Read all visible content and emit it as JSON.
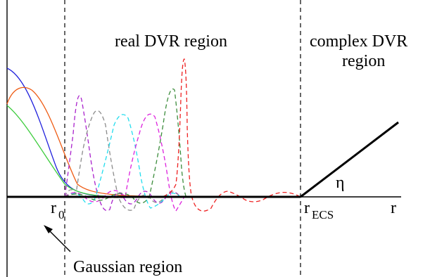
{
  "labels": {
    "real_region": "real DVR region",
    "complex_region_line1": "complex DVR",
    "complex_region_line2": "region",
    "eta": "η",
    "r0_main": "r",
    "r0_sub": "0",
    "recs_main": "r",
    "recs_sub": "ECS",
    "r_axis": "r",
    "gaussian_region": "Gaussian region"
  },
  "colors": {
    "gauss_blue": "#1f1fdc",
    "gauss_orange": "#ee5a12",
    "gauss_green": "#3ccc3c",
    "dvr_purple": "#aa22cc",
    "dvr_gray": "#8c8c8c",
    "dvr_cyan": "#22ddee",
    "dvr_magenta": "#dd22dd",
    "dvr_darkgreen": "#3c8c3c",
    "dvr_red": "#ee2222",
    "axis": "#000000"
  }
}
